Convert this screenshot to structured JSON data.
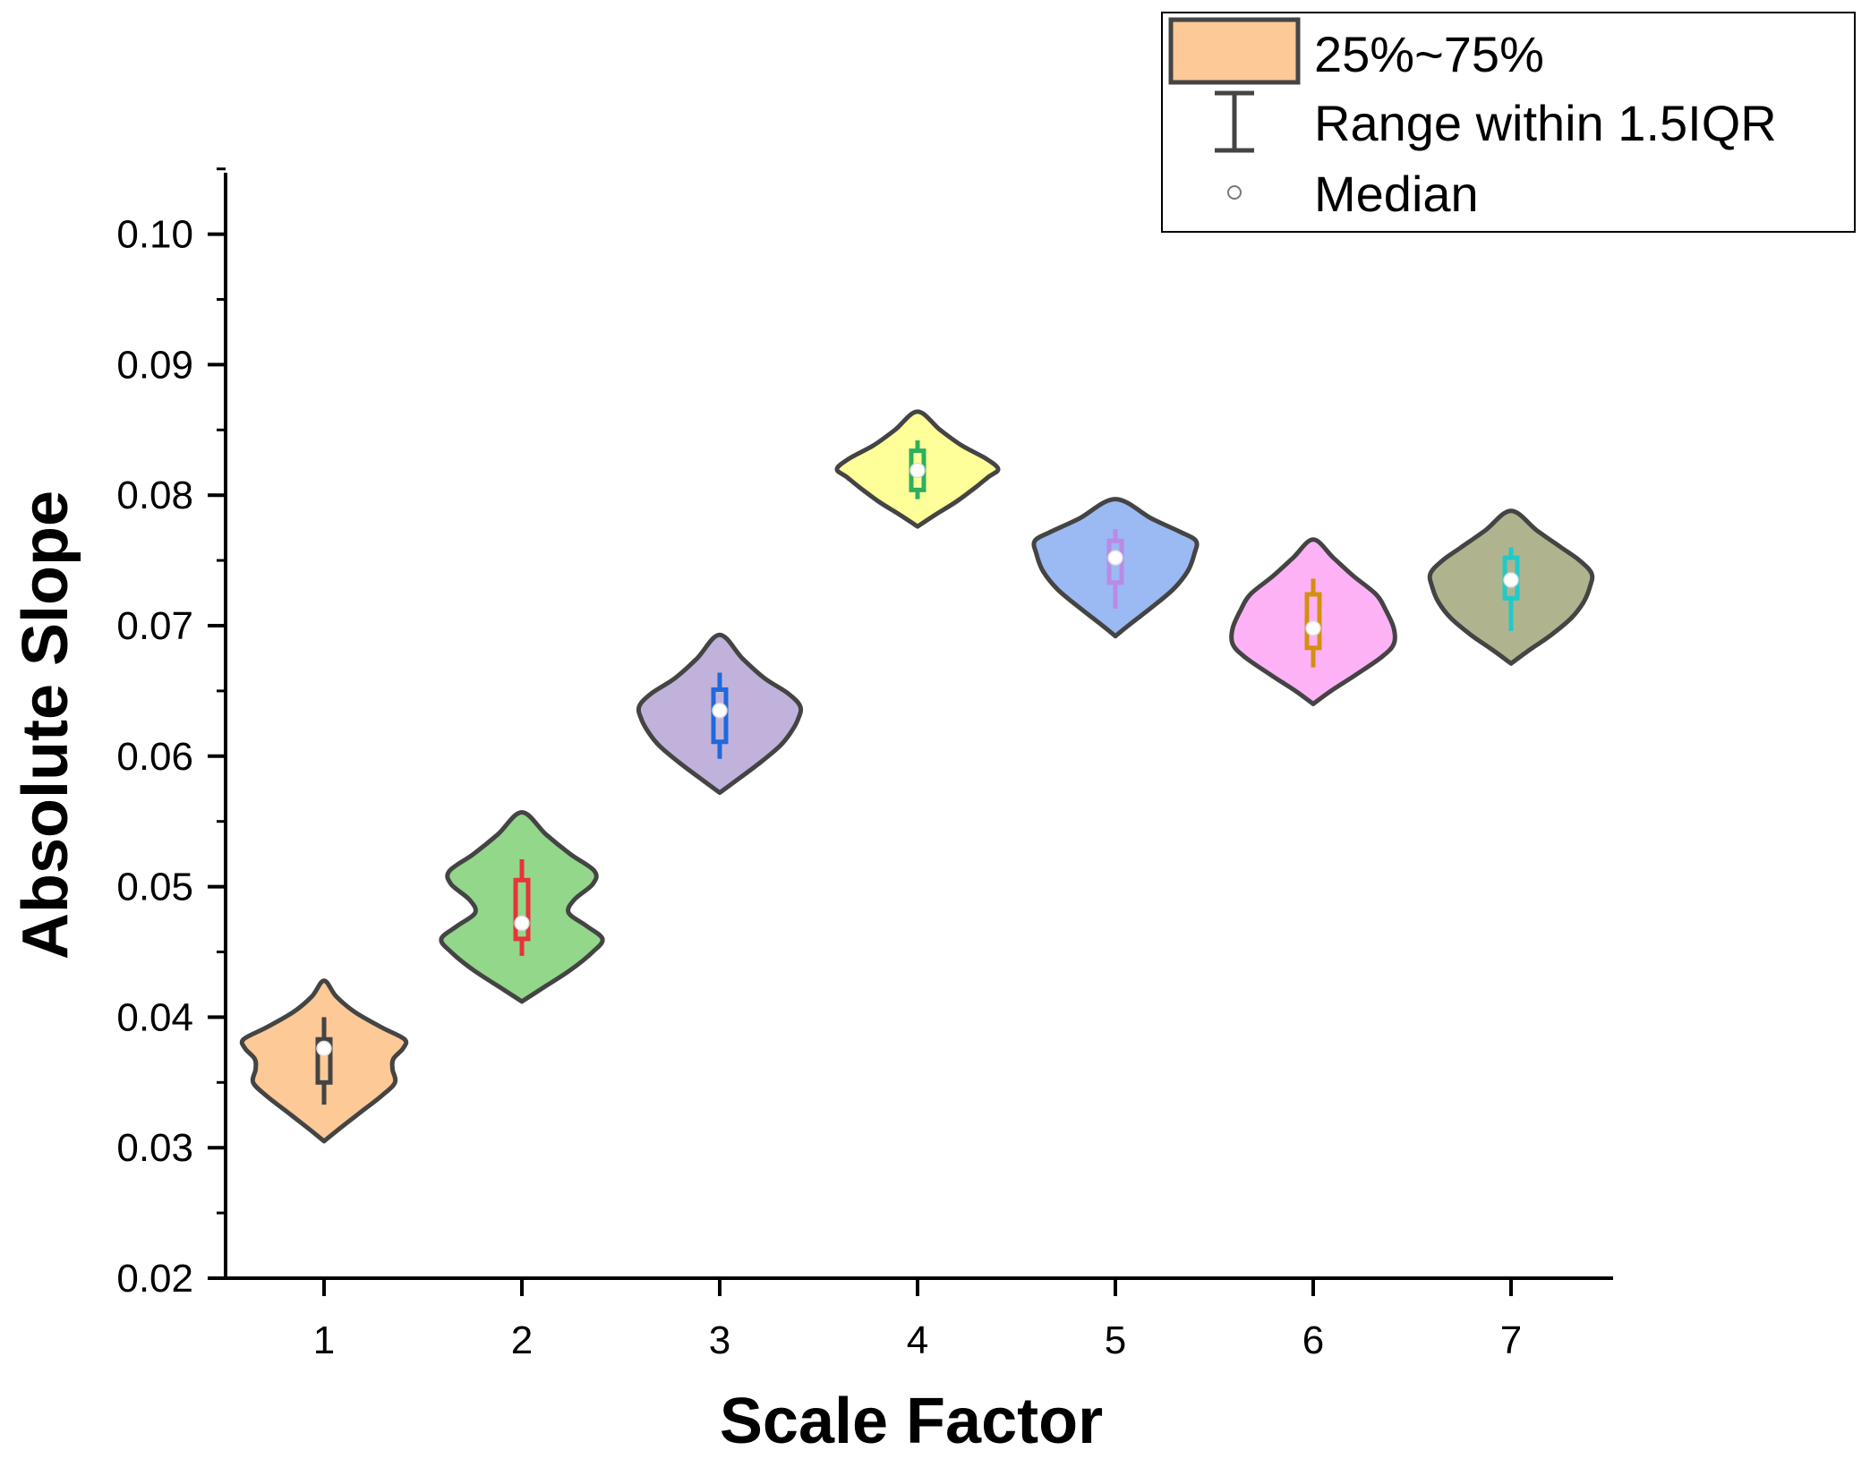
{
  "chart_data": {
    "type": "violin",
    "xlabel": "Scale Factor",
    "ylabel": "Absolute Slope",
    "categories": [
      "1",
      "2",
      "3",
      "4",
      "5",
      "6",
      "7"
    ],
    "ylim": [
      0.02,
      0.105
    ],
    "yticks": [
      0.02,
      0.03,
      0.04,
      0.05,
      0.06,
      0.07,
      0.08,
      0.09,
      0.1
    ],
    "ytick_labels": [
      "0.02",
      "0.03",
      "0.04",
      "0.05",
      "0.06",
      "0.07",
      "0.08",
      "0.09",
      "0.10"
    ],
    "legend": {
      "position": "top-right",
      "entries": [
        "25%~75%",
        "Range within 1.5IQR",
        "Median"
      ]
    },
    "series": [
      {
        "category": "1",
        "fill": "#FDC996",
        "box_color": "#444444",
        "min": 0.0305,
        "max": 0.0428,
        "whisker_low": 0.0333,
        "q1": 0.035,
        "median": 0.0376,
        "q3": 0.0383,
        "whisker_high": 0.04,
        "profile": [
          [
            0.0305,
            0.0
          ],
          [
            0.0315,
            0.2
          ],
          [
            0.0327,
            0.45
          ],
          [
            0.034,
            0.72
          ],
          [
            0.035,
            0.88
          ],
          [
            0.036,
            0.85
          ],
          [
            0.0368,
            0.86
          ],
          [
            0.0376,
            0.98
          ],
          [
            0.0383,
            1.0
          ],
          [
            0.0392,
            0.72
          ],
          [
            0.0404,
            0.38
          ],
          [
            0.0416,
            0.15
          ],
          [
            0.0428,
            0.0
          ]
        ]
      },
      {
        "category": "2",
        "fill": "#92D78A",
        "box_color": "#E8333A",
        "min": 0.0412,
        "max": 0.0557,
        "whisker_low": 0.0447,
        "q1": 0.046,
        "median": 0.0472,
        "q3": 0.0505,
        "whisker_high": 0.0521,
        "profile": [
          [
            0.0412,
            0.0
          ],
          [
            0.0422,
            0.25
          ],
          [
            0.0436,
            0.6
          ],
          [
            0.045,
            0.88
          ],
          [
            0.046,
            1.0
          ],
          [
            0.047,
            0.8
          ],
          [
            0.048,
            0.58
          ],
          [
            0.049,
            0.65
          ],
          [
            0.0502,
            0.88
          ],
          [
            0.0512,
            0.9
          ],
          [
            0.0525,
            0.6
          ],
          [
            0.054,
            0.3
          ],
          [
            0.0557,
            0.0
          ]
        ]
      },
      {
        "category": "3",
        "fill": "#C1B2DB",
        "box_color": "#1F69DB",
        "min": 0.0572,
        "max": 0.0693,
        "whisker_low": 0.0598,
        "q1": 0.0611,
        "median": 0.0635,
        "q3": 0.0651,
        "whisker_high": 0.0664,
        "profile": [
          [
            0.0572,
            0.0
          ],
          [
            0.0582,
            0.22
          ],
          [
            0.0595,
            0.5
          ],
          [
            0.0608,
            0.75
          ],
          [
            0.0618,
            0.88
          ],
          [
            0.0628,
            0.97
          ],
          [
            0.0638,
            1.0
          ],
          [
            0.0648,
            0.85
          ],
          [
            0.066,
            0.55
          ],
          [
            0.0675,
            0.28
          ],
          [
            0.0693,
            0.0
          ]
        ]
      },
      {
        "category": "4",
        "fill": "#FFFF99",
        "box_color": "#2EAE5E",
        "min": 0.0776,
        "max": 0.0864,
        "whisker_low": 0.0797,
        "q1": 0.0804,
        "median": 0.0819,
        "q3": 0.0834,
        "whisker_high": 0.0842,
        "profile": [
          [
            0.0776,
            0.0
          ],
          [
            0.0785,
            0.22
          ],
          [
            0.0795,
            0.48
          ],
          [
            0.0806,
            0.72
          ],
          [
            0.0814,
            0.88
          ],
          [
            0.082,
            1.0
          ],
          [
            0.0828,
            0.85
          ],
          [
            0.0838,
            0.55
          ],
          [
            0.085,
            0.28
          ],
          [
            0.0864,
            0.0
          ]
        ]
      },
      {
        "category": "5",
        "fill": "#9BB9F2",
        "box_color": "#B98AE6",
        "min": 0.0692,
        "max": 0.0797,
        "whisker_low": 0.0713,
        "q1": 0.0733,
        "median": 0.0752,
        "q3": 0.0765,
        "whisker_high": 0.0774,
        "profile": [
          [
            0.0692,
            0.0
          ],
          [
            0.0702,
            0.2
          ],
          [
            0.0714,
            0.45
          ],
          [
            0.0728,
            0.72
          ],
          [
            0.0742,
            0.9
          ],
          [
            0.0755,
            0.98
          ],
          [
            0.0765,
            1.0
          ],
          [
            0.0772,
            0.8
          ],
          [
            0.0782,
            0.45
          ],
          [
            0.0797,
            0.0
          ]
        ]
      },
      {
        "category": "6",
        "fill": "#FEB2F6",
        "box_color": "#D4900F",
        "min": 0.064,
        "max": 0.0766,
        "whisker_low": 0.0668,
        "q1": 0.0683,
        "median": 0.0698,
        "q3": 0.0724,
        "whisker_high": 0.0736,
        "profile": [
          [
            0.064,
            0.0
          ],
          [
            0.065,
            0.22
          ],
          [
            0.0662,
            0.52
          ],
          [
            0.0676,
            0.85
          ],
          [
            0.0686,
            1.0
          ],
          [
            0.0698,
            1.0
          ],
          [
            0.0712,
            0.9
          ],
          [
            0.0724,
            0.78
          ],
          [
            0.0738,
            0.5
          ],
          [
            0.0752,
            0.25
          ],
          [
            0.0766,
            0.0
          ]
        ]
      },
      {
        "category": "7",
        "fill": "#B0B48E",
        "box_color": "#22C9C9",
        "min": 0.0671,
        "max": 0.0788,
        "whisker_low": 0.0696,
        "q1": 0.0721,
        "median": 0.0735,
        "q3": 0.0752,
        "whisker_high": 0.076,
        "profile": [
          [
            0.0671,
            0.0
          ],
          [
            0.0681,
            0.22
          ],
          [
            0.0693,
            0.5
          ],
          [
            0.0706,
            0.75
          ],
          [
            0.0718,
            0.9
          ],
          [
            0.073,
            0.98
          ],
          [
            0.074,
            1.0
          ],
          [
            0.075,
            0.85
          ],
          [
            0.076,
            0.62
          ],
          [
            0.0773,
            0.32
          ],
          [
            0.0788,
            0.0
          ]
        ]
      }
    ]
  },
  "colors": {
    "outline": "#444444",
    "axis": "#000000",
    "median_fill": "#FFFFFF",
    "legend_swatch": "#FDC996"
  }
}
